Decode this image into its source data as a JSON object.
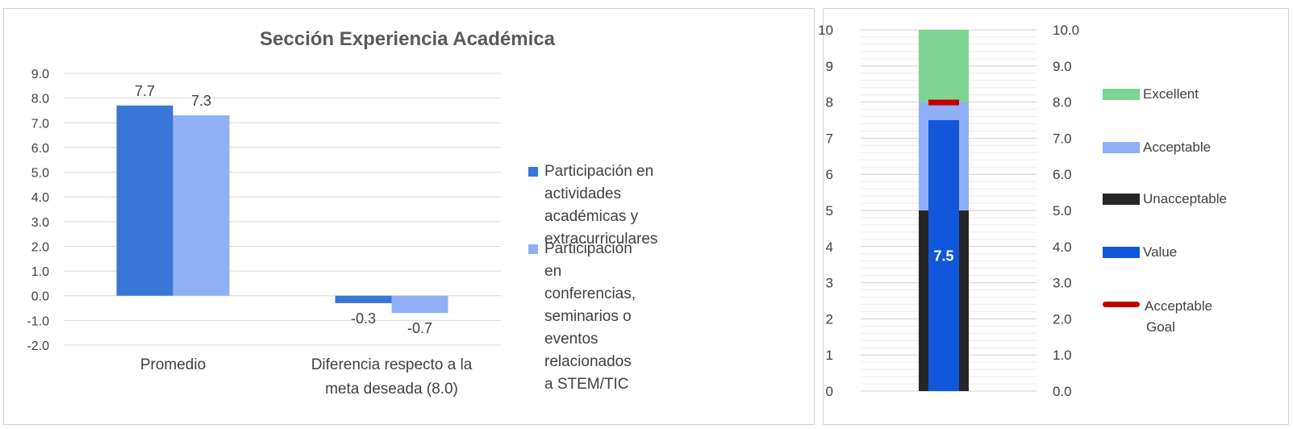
{
  "chart_data": [
    {
      "type": "bar",
      "title": "Sección Experiencia Académica",
      "categories": [
        "Promedio",
        "Diferencia respecto a la meta deseada (8.0)"
      ],
      "category_lines": [
        [
          "Promedio"
        ],
        [
          "Diferencia respecto a la",
          "meta deseada (8.0)"
        ]
      ],
      "series": [
        {
          "name": "Participación en actividades académicas y extracurriculares",
          "name_lines": [
            "Participación en actividades",
            "académicas y",
            "extracurriculares"
          ],
          "values": [
            7.7,
            -0.3
          ],
          "labels": [
            "7.7",
            "-0.3"
          ],
          "color": "#3a76d8"
        },
        {
          "name": "Participación en conferencias, seminarios o eventos relacionados a STEM/TIC",
          "name_lines": [
            "Participación en conferencias,",
            "seminarios o eventos",
            "relacionados a STEM/TIC"
          ],
          "values": [
            7.3,
            -0.7
          ],
          "labels": [
            "7.3",
            "-0.7"
          ],
          "color": "#91aff7"
        }
      ],
      "ylim": [
        -2.0,
        9.0
      ],
      "yticks": [
        "9.0",
        "8.0",
        "7.0",
        "6.0",
        "5.0",
        "4.0",
        "3.0",
        "2.0",
        "1.0",
        "0.0",
        "-1.0",
        "-2.0"
      ],
      "grid": true,
      "legend": "right"
    },
    {
      "type": "bullet",
      "ylim": [
        0,
        10
      ],
      "yticks_left": [
        "10",
        "9",
        "8",
        "7",
        "6",
        "5",
        "4",
        "3",
        "2",
        "1",
        "0"
      ],
      "yticks_right": [
        "10.0",
        "9.0",
        "8.0",
        "7.0",
        "6.0",
        "5.0",
        "4.0",
        "3.0",
        "2.0",
        "1.0",
        "0.0"
      ],
      "ranges": [
        {
          "name": "Unacceptable",
          "from": 0,
          "to": 5,
          "color": "#262626"
        },
        {
          "name": "Acceptable",
          "from": 5,
          "to": 8,
          "color": "#91aff7"
        },
        {
          "name": "Excellent",
          "from": 8,
          "to": 10,
          "color": "#7dd492"
        }
      ],
      "value": 7.5,
      "value_label": "7.5",
      "value_color": "#1157dc",
      "goal": 8.0,
      "goal_color": "#c00000",
      "legend": [
        {
          "label": "Excellent",
          "color": "#7dd492"
        },
        {
          "label": "Acceptable",
          "color": "#91aff7"
        },
        {
          "label": "Unacceptable",
          "color": "#262626"
        },
        {
          "label": "Value",
          "color": "#1157dc"
        },
        {
          "label_lines": [
            "Acceptable",
            "Goal"
          ],
          "color": "#c00000"
        }
      ]
    }
  ]
}
